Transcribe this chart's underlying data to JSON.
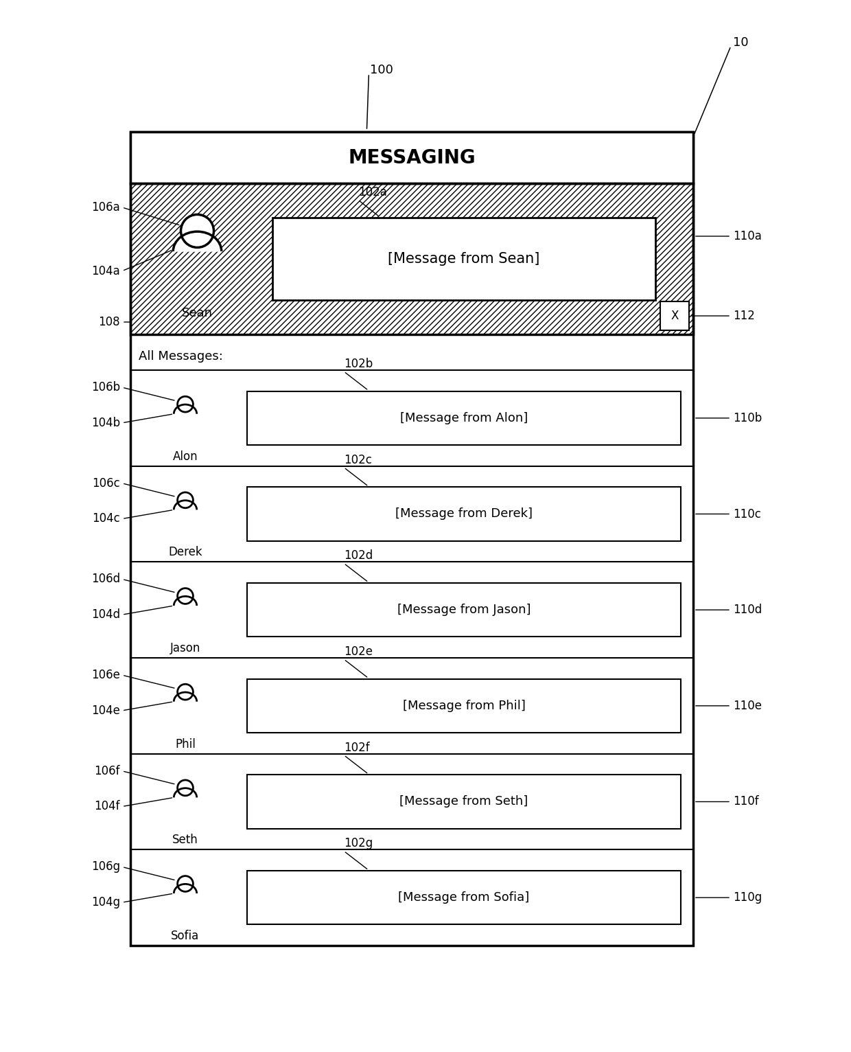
{
  "bg_color": "#ffffff",
  "fig_width": 12.4,
  "fig_height": 15.32,
  "title_label": "MESSAGING",
  "phone_label": "100",
  "device_label": "10",
  "header_bar_label": "108",
  "all_messages_text": "All Messages:",
  "featured_name": "Sean",
  "featured_msg": "[Message from Sean]",
  "featured_msg_label": "102a",
  "featured_avatar_label": "106a",
  "featured_contact_label": "104a",
  "featured_row_label": "110a",
  "dismiss_label": "112",
  "contacts": [
    {
      "name": "Alon",
      "msg": "[Message from Alon]",
      "msg_lbl": "102b",
      "av_lbl": "106b",
      "ct_lbl": "104b",
      "row_lbl": "110b"
    },
    {
      "name": "Derek",
      "msg": "[Message from Derek]",
      "msg_lbl": "102c",
      "av_lbl": "106c",
      "ct_lbl": "104c",
      "row_lbl": "110c"
    },
    {
      "name": "Jason",
      "msg": "[Message from Jason]",
      "msg_lbl": "102d",
      "av_lbl": "106d",
      "ct_lbl": "104d",
      "row_lbl": "110d"
    },
    {
      "name": "Phil",
      "msg": "[Message from Phil]",
      "msg_lbl": "102e",
      "av_lbl": "106e",
      "ct_lbl": "104e",
      "row_lbl": "110e"
    },
    {
      "name": "Seth",
      "msg": "[Message from Seth]",
      "msg_lbl": "102f",
      "av_lbl": "106f",
      "ct_lbl": "104f",
      "row_lbl": "110f"
    },
    {
      "name": "Sofia",
      "msg": "[Message from Sofia]",
      "msg_lbl": "102g",
      "av_lbl": "106g",
      "ct_lbl": "104g",
      "row_lbl": "110g"
    }
  ]
}
